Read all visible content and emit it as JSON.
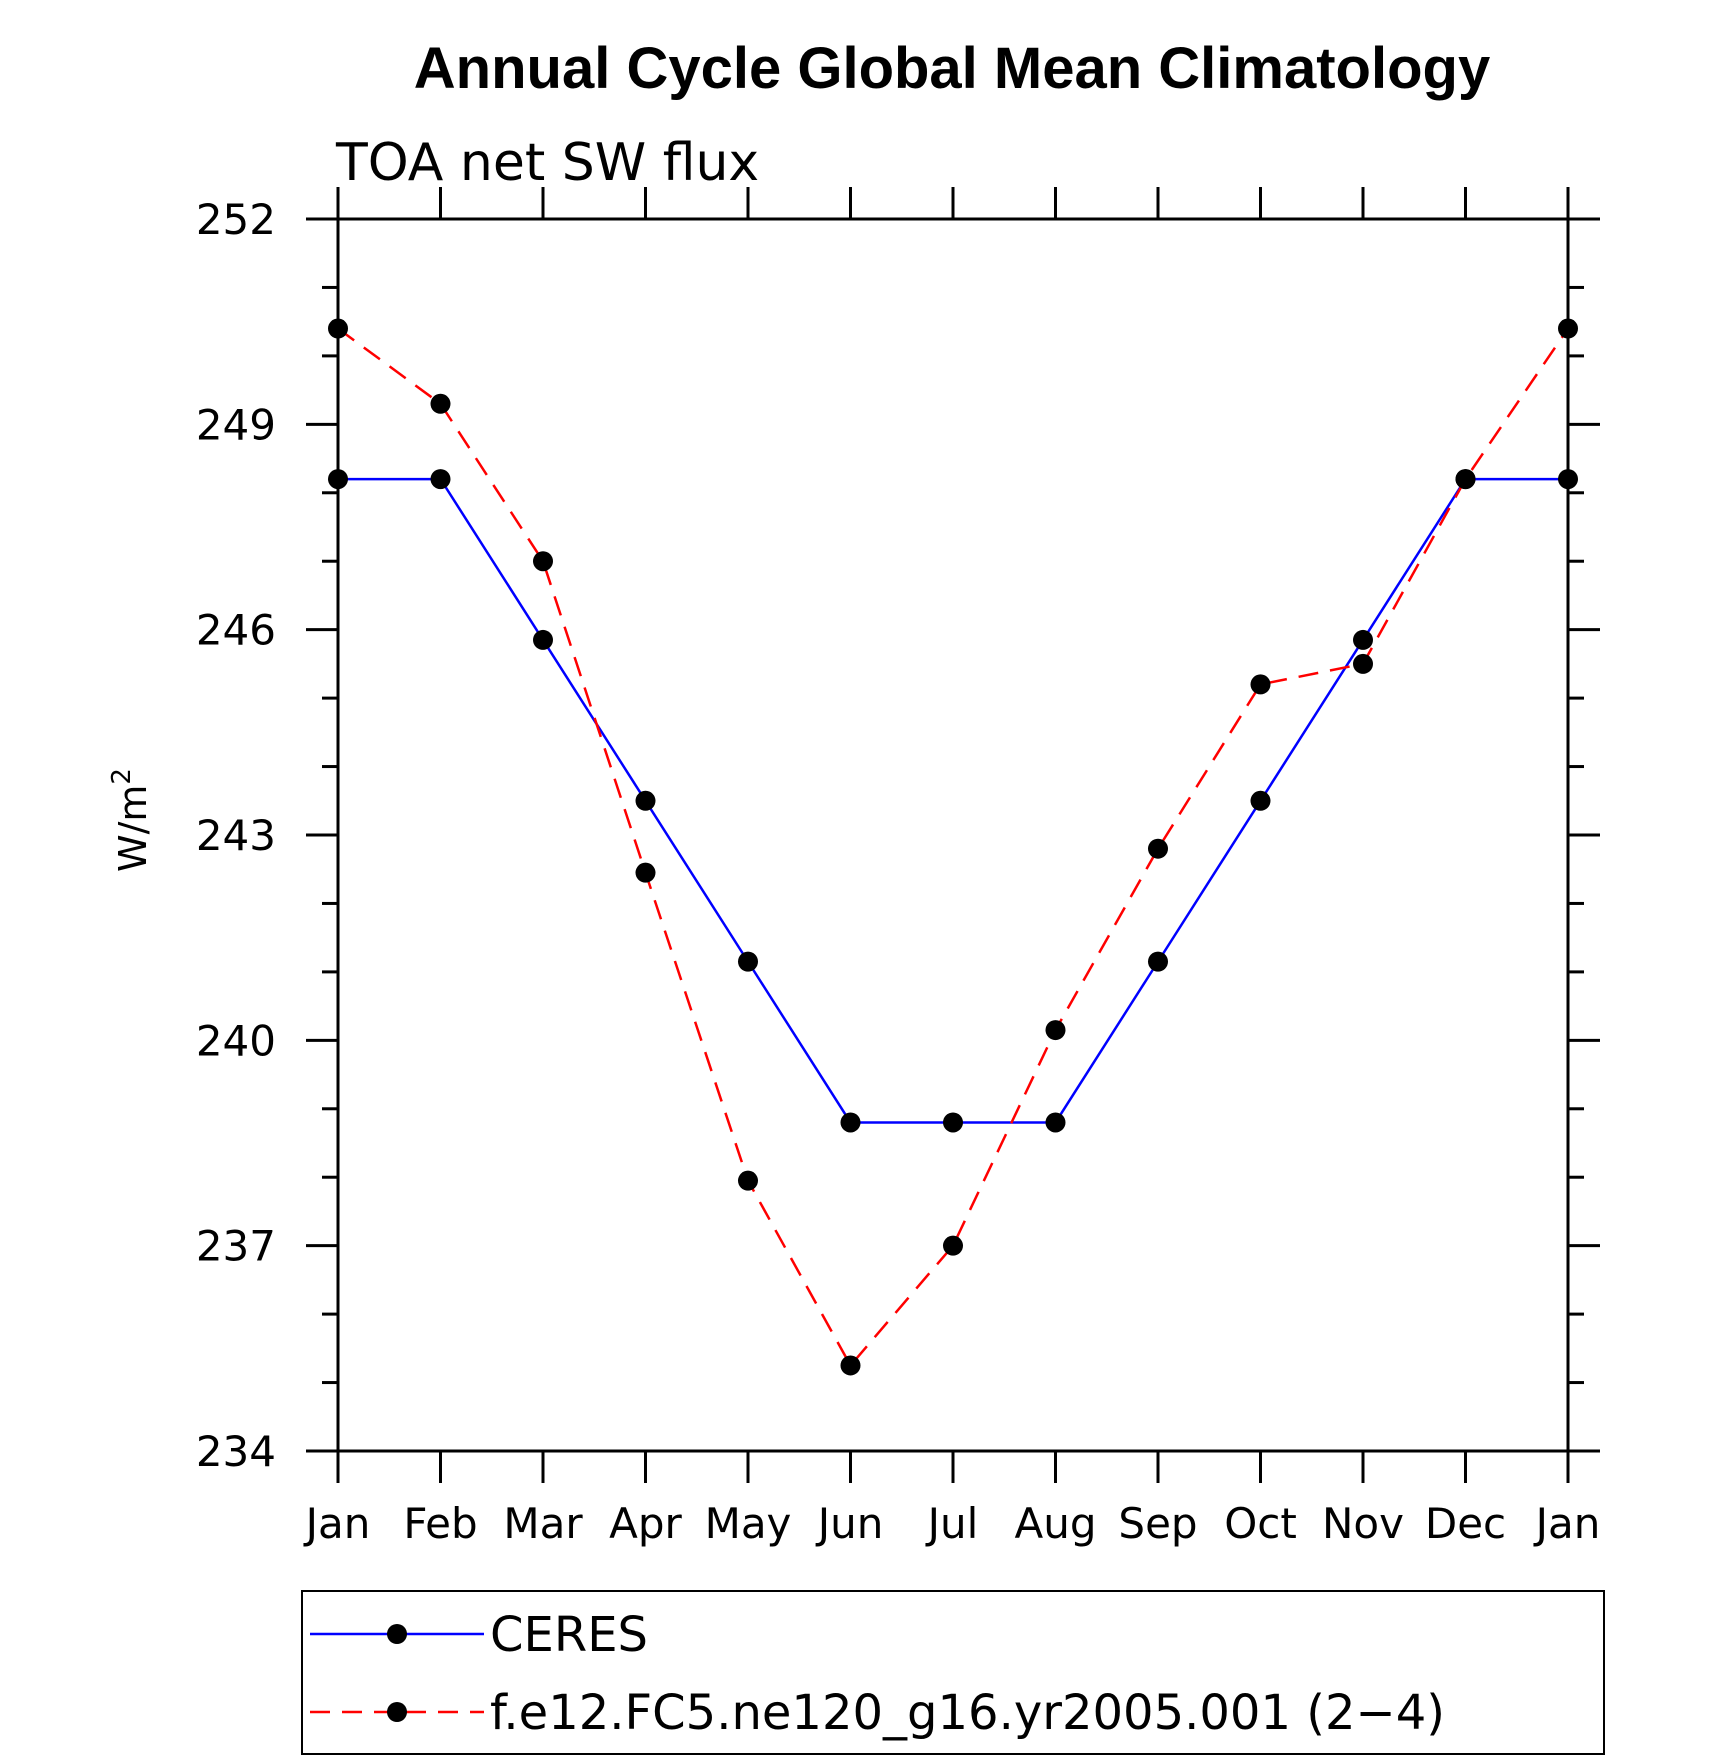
{
  "chart_data": {
    "type": "line",
    "title": "Annual Cycle Global Mean Climatology",
    "subtitle": "TOA net SW flux",
    "ylabel_base": "W/m",
    "ylabel_sup": "2",
    "ylim": [
      234,
      252
    ],
    "yticks": [
      "234",
      "237",
      "240",
      "243",
      "246",
      "249",
      "252"
    ],
    "categories": [
      "Jan",
      "Feb",
      "Mar",
      "Apr",
      "May",
      "Jun",
      "Jul",
      "Aug",
      "Sep",
      "Oct",
      "Nov",
      "Dec",
      "Jan"
    ],
    "series": [
      {
        "name": "CERES",
        "color": "#0000ff",
        "dash": "solid",
        "values": [
          248.2,
          248.2,
          245.85,
          243.5,
          241.15,
          238.8,
          238.8,
          238.8,
          241.15,
          243.5,
          245.85,
          248.2,
          248.2
        ]
      },
      {
        "name": "f.e12.FC5.ne120_g16.yr2005.001 (2−4)",
        "color": "#ff0000",
        "dash": "dashed",
        "values": [
          250.4,
          249.3,
          247.0,
          242.45,
          237.95,
          235.25,
          237.0,
          240.15,
          242.8,
          245.2,
          245.5,
          248.2,
          250.4
        ]
      }
    ],
    "legend_position": "bottom",
    "grid": false
  }
}
